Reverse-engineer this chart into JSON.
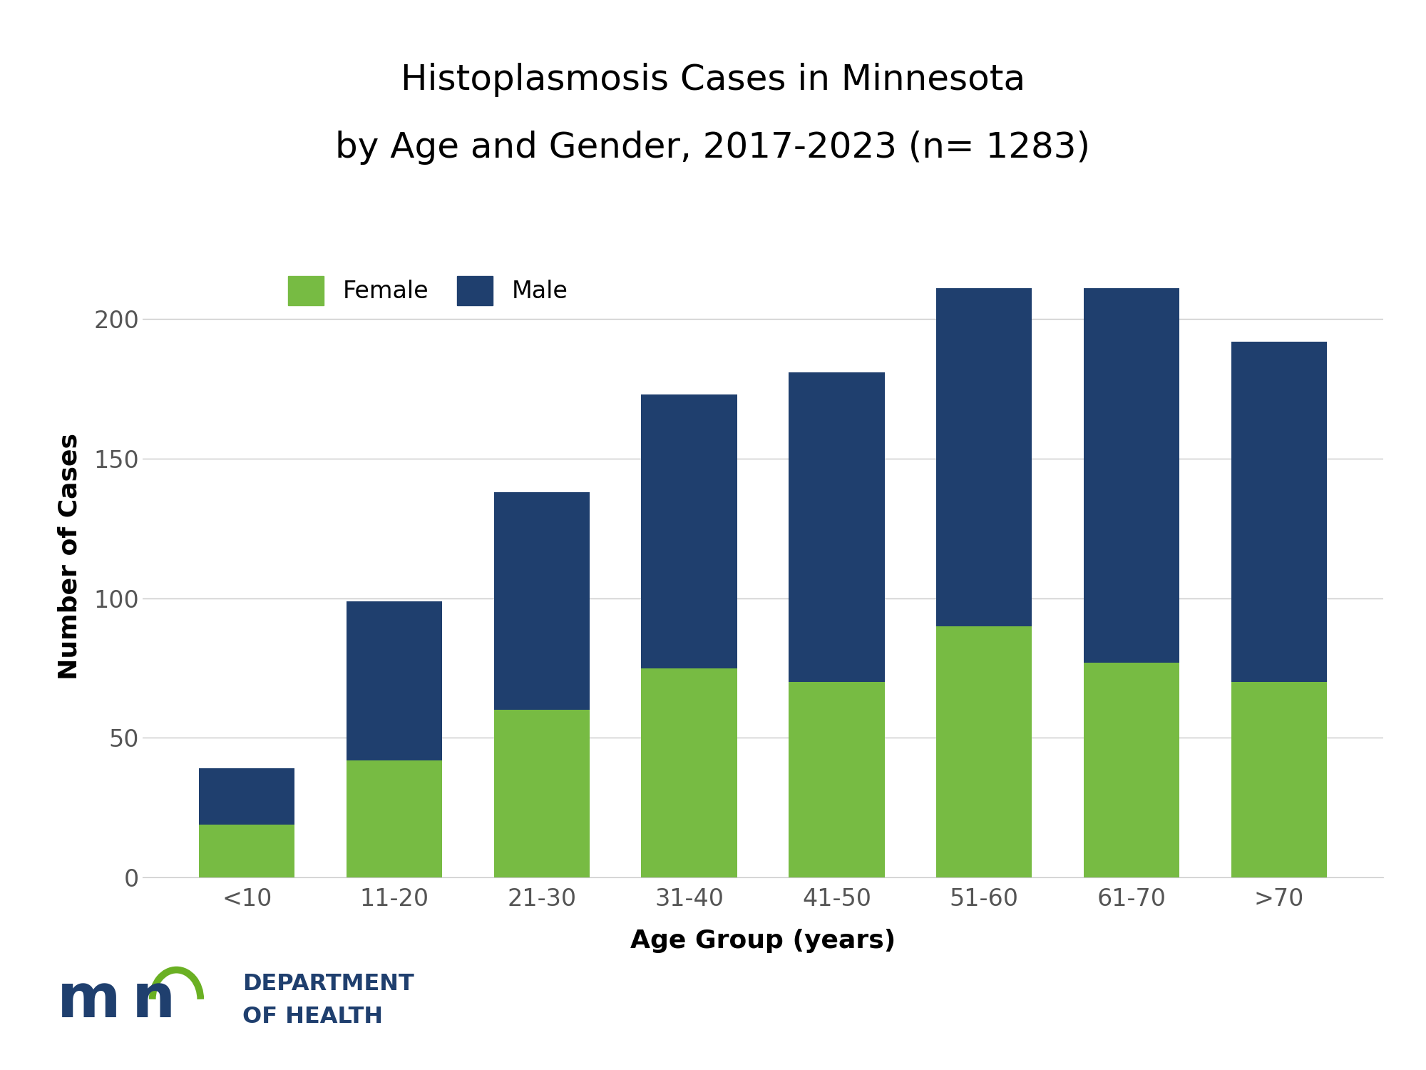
{
  "title_line1": "Histoplasmosis Cases in Minnesota",
  "title_line2": "by Age and Gender, 2017-2023 (n= 1283)",
  "categories": [
    "<10",
    "11-20",
    "21-30",
    "31-40",
    "41-50",
    "51-60",
    "61-70",
    ">70"
  ],
  "female_values": [
    19,
    42,
    60,
    75,
    70,
    90,
    77,
    70
  ],
  "male_values": [
    20,
    57,
    78,
    98,
    111,
    121,
    134,
    122
  ],
  "female_color": "#77bb43",
  "male_color": "#1f3f6e",
  "ylabel": "Number of Cases",
  "xlabel": "Age Group (years)",
  "ylim": [
    0,
    230
  ],
  "yticks": [
    0,
    50,
    100,
    150,
    200
  ],
  "background_color": "#ffffff",
  "title_fontsize": 36,
  "axis_label_fontsize": 26,
  "tick_fontsize": 24,
  "legend_fontsize": 24,
  "tick_color": "#555555",
  "grid_color": "#c8c8c8",
  "dept_text_color": "#1f3f6e",
  "dept_green_color": "#6ab023"
}
